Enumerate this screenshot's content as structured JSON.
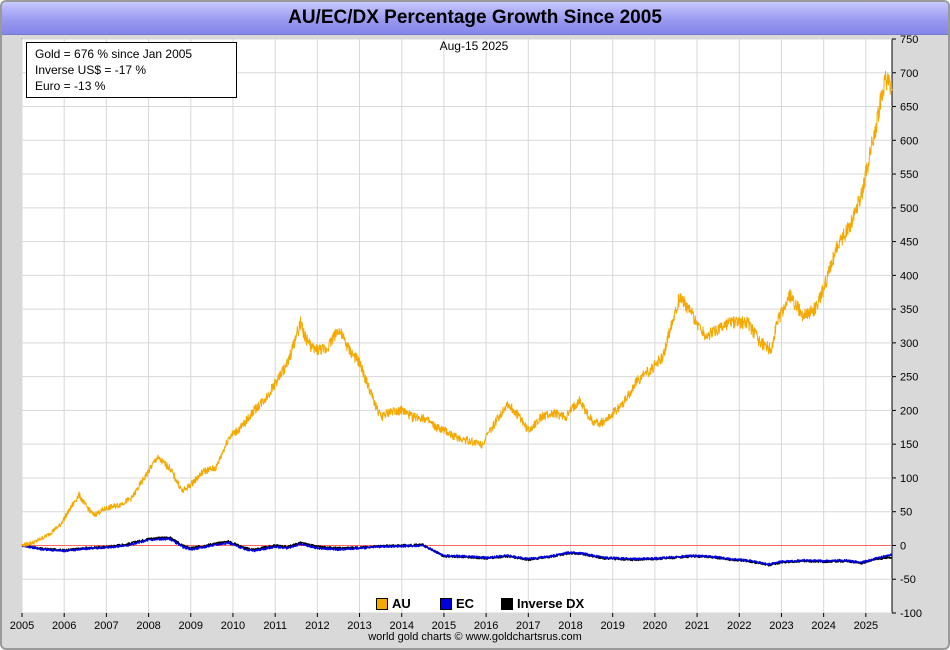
{
  "title": "AU/EC/DX Percentage Growth Since 2005",
  "date_label": "Aug-15  2025",
  "legend_box": {
    "line1": "Gold = 676 % since Jan 2005",
    "line2": "Inverse US$ = -17 %",
    "line3": "Euro = -13 %"
  },
  "series_keys": [
    {
      "label": "AU",
      "color": "#f5a900"
    },
    {
      "label": "EC",
      "color": "#0000dd"
    },
    {
      "label": "Inverse DX",
      "color": "#000000"
    }
  ],
  "footer": "world gold charts © www.goldchartsrus.com",
  "chart_data": {
    "type": "line",
    "xlim": [
      2005,
      2025.62
    ],
    "ylim": [
      -100,
      750
    ],
    "x_ticks": [
      "2005",
      "2006",
      "2007",
      "2008",
      "2009",
      "2010",
      "2011",
      "2012",
      "2013",
      "2014",
      "2015",
      "2016",
      "2017",
      "2018",
      "2019",
      "2020",
      "2021",
      "2022",
      "2023",
      "2024",
      "2025"
    ],
    "y_ticks": [
      "750",
      "700",
      "650",
      "600",
      "550",
      "500",
      "450",
      "400",
      "350",
      "300",
      "250",
      "200",
      "150",
      "100",
      "50",
      "0",
      "-50",
      "-100"
    ],
    "zero_line_color": "#ff6666",
    "series": [
      {
        "name": "AU",
        "color": "#f5a900",
        "x": [
          2005.0,
          2005.3,
          2005.6,
          2005.9,
          2006.1,
          2006.35,
          2006.5,
          2006.7,
          2007.0,
          2007.3,
          2007.6,
          2007.9,
          2008.2,
          2008.5,
          2008.8,
          2009.0,
          2009.3,
          2009.6,
          2009.9,
          2010.2,
          2010.5,
          2010.8,
          2011.0,
          2011.3,
          2011.6,
          2011.7,
          2011.9,
          2012.2,
          2012.5,
          2012.75,
          2013.0,
          2013.3,
          2013.5,
          2013.8,
          2014.0,
          2014.25,
          2014.5,
          2014.8,
          2015.0,
          2015.3,
          2015.6,
          2015.9,
          2016.2,
          2016.5,
          2016.8,
          2017.0,
          2017.3,
          2017.6,
          2017.9,
          2018.2,
          2018.5,
          2018.7,
          2019.0,
          2019.3,
          2019.6,
          2019.9,
          2020.2,
          2020.4,
          2020.6,
          2020.9,
          2021.2,
          2021.5,
          2021.8,
          2022.2,
          2022.5,
          2022.75,
          2022.9,
          2023.2,
          2023.5,
          2023.8,
          2024.0,
          2024.3,
          2024.6,
          2024.9,
          2025.1,
          2025.3,
          2025.45,
          2025.62
        ],
        "values": [
          0,
          5,
          15,
          30,
          50,
          75,
          60,
          45,
          55,
          60,
          70,
          100,
          130,
          115,
          80,
          90,
          110,
          115,
          160,
          175,
          200,
          220,
          240,
          270,
          330,
          310,
          290,
          290,
          320,
          290,
          270,
          220,
          190,
          200,
          200,
          190,
          190,
          175,
          170,
          160,
          155,
          150,
          180,
          210,
          190,
          170,
          190,
          195,
          190,
          215,
          185,
          180,
          195,
          215,
          245,
          260,
          280,
          330,
          370,
          340,
          310,
          320,
          330,
          330,
          300,
          290,
          330,
          370,
          340,
          350,
          380,
          440,
          470,
          520,
          580,
          640,
          690,
          676
        ]
      },
      {
        "name": "EC",
        "color": "#0000dd",
        "x": [
          2005.0,
          2005.5,
          2006.0,
          2006.5,
          2007.0,
          2007.5,
          2008.0,
          2008.5,
          2008.8,
          2009.0,
          2009.5,
          2009.9,
          2010.3,
          2010.5,
          2011.0,
          2011.3,
          2011.6,
          2012.0,
          2012.5,
          2013.0,
          2013.5,
          2014.0,
          2014.5,
          2015.0,
          2015.5,
          2016.0,
          2016.5,
          2017.0,
          2017.5,
          2018.0,
          2018.3,
          2018.8,
          2019.5,
          2020.0,
          2020.5,
          2020.9,
          2021.3,
          2021.8,
          2022.2,
          2022.7,
          2023.0,
          2023.5,
          2024.0,
          2024.5,
          2024.9,
          2025.2,
          2025.62
        ],
        "values": [
          0,
          -6,
          -8,
          -5,
          -3,
          0,
          8,
          10,
          -2,
          -6,
          0,
          4,
          -6,
          -8,
          -2,
          -4,
          2,
          -4,
          -6,
          -4,
          -2,
          -1,
          0,
          -15,
          -16,
          -18,
          -15,
          -20,
          -16,
          -10,
          -12,
          -18,
          -20,
          -19,
          -17,
          -15,
          -16,
          -20,
          -22,
          -28,
          -24,
          -22,
          -23,
          -22,
          -25,
          -20,
          -13
        ]
      },
      {
        "name": "Inverse DX",
        "color": "#000000",
        "x": [
          2005.0,
          2005.5,
          2006.0,
          2006.5,
          2007.0,
          2007.5,
          2008.0,
          2008.5,
          2008.8,
          2009.0,
          2009.5,
          2009.9,
          2010.3,
          2010.5,
          2011.0,
          2011.3,
          2011.6,
          2012.0,
          2012.5,
          2013.0,
          2013.5,
          2014.0,
          2014.5,
          2015.0,
          2015.5,
          2016.0,
          2016.5,
          2017.0,
          2017.5,
          2018.0,
          2018.3,
          2018.8,
          2019.5,
          2020.0,
          2020.5,
          2020.9,
          2021.3,
          2021.8,
          2022.2,
          2022.7,
          2023.0,
          2023.5,
          2024.0,
          2024.5,
          2024.9,
          2025.2,
          2025.62
        ],
        "values": [
          0,
          -5,
          -7,
          -4,
          -2,
          2,
          10,
          12,
          0,
          -4,
          2,
          6,
          -4,
          -6,
          0,
          -2,
          4,
          -2,
          -4,
          -3,
          -1,
          0,
          1,
          -16,
          -17,
          -19,
          -16,
          -21,
          -17,
          -11,
          -13,
          -19,
          -21,
          -20,
          -18,
          -16,
          -17,
          -21,
          -23,
          -29,
          -25,
          -23,
          -24,
          -23,
          -26,
          -21,
          -17
        ]
      }
    ]
  }
}
